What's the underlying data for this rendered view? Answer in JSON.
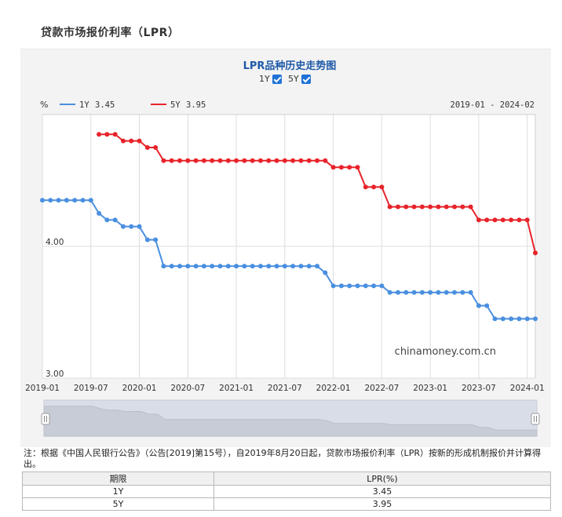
{
  "page": {
    "title": "贷款市场报价利率（LPR）",
    "note": "注：根据《中国人民银行公告》（公告[2019]第15号），自2019年8月20日起，贷款市场报价利率（LPR）按新的形成机制报价并计算得出。"
  },
  "chart_data": {
    "type": "line",
    "title": "LPR品种历史走势图",
    "toggles": [
      {
        "label": "1Y",
        "checked": true
      },
      {
        "label": "5Y",
        "checked": true
      }
    ],
    "ylabel": "%",
    "range_label": "2019-01 - 2024-02",
    "watermark": "chinamoney.com.cn",
    "ylim": [
      3.0,
      5.0
    ],
    "yticks": [
      {
        "value": 3.0,
        "label": "3.00"
      },
      {
        "value": 4.0,
        "label": "4.00"
      }
    ],
    "xlim": [
      "2019-01",
      "2024-02"
    ],
    "xticks": [
      "2019-01",
      "2019-07",
      "2020-01",
      "2020-07",
      "2021-01",
      "2021-07",
      "2022-01",
      "2022-07",
      "2023-01",
      "2023-07",
      "2024-01"
    ],
    "grid": true,
    "legend": [
      {
        "name": "1Y",
        "latest": "3.45",
        "color": "#4a8fe0"
      },
      {
        "name": "5Y",
        "latest": "3.95",
        "color": "#e8232a"
      }
    ],
    "series": [
      {
        "name": "1Y",
        "color": "#4a8fe0",
        "points": [
          [
            "2019-01",
            4.35
          ],
          [
            "2019-02",
            4.35
          ],
          [
            "2019-03",
            4.35
          ],
          [
            "2019-04",
            4.35
          ],
          [
            "2019-05",
            4.35
          ],
          [
            "2019-06",
            4.35
          ],
          [
            "2019-07",
            4.35
          ],
          [
            "2019-08",
            4.25
          ],
          [
            "2019-09",
            4.2
          ],
          [
            "2019-10",
            4.2
          ],
          [
            "2019-11",
            4.15
          ],
          [
            "2019-12",
            4.15
          ],
          [
            "2020-01",
            4.15
          ],
          [
            "2020-02",
            4.05
          ],
          [
            "2020-03",
            4.05
          ],
          [
            "2020-04",
            3.85
          ],
          [
            "2020-05",
            3.85
          ],
          [
            "2020-06",
            3.85
          ],
          [
            "2020-07",
            3.85
          ],
          [
            "2020-08",
            3.85
          ],
          [
            "2020-09",
            3.85
          ],
          [
            "2020-10",
            3.85
          ],
          [
            "2020-11",
            3.85
          ],
          [
            "2020-12",
            3.85
          ],
          [
            "2021-01",
            3.85
          ],
          [
            "2021-02",
            3.85
          ],
          [
            "2021-03",
            3.85
          ],
          [
            "2021-04",
            3.85
          ],
          [
            "2021-05",
            3.85
          ],
          [
            "2021-06",
            3.85
          ],
          [
            "2021-07",
            3.85
          ],
          [
            "2021-08",
            3.85
          ],
          [
            "2021-09",
            3.85
          ],
          [
            "2021-10",
            3.85
          ],
          [
            "2021-11",
            3.85
          ],
          [
            "2021-12",
            3.8
          ],
          [
            "2022-01",
            3.7
          ],
          [
            "2022-02",
            3.7
          ],
          [
            "2022-03",
            3.7
          ],
          [
            "2022-04",
            3.7
          ],
          [
            "2022-05",
            3.7
          ],
          [
            "2022-06",
            3.7
          ],
          [
            "2022-07",
            3.7
          ],
          [
            "2022-08",
            3.65
          ],
          [
            "2022-09",
            3.65
          ],
          [
            "2022-10",
            3.65
          ],
          [
            "2022-11",
            3.65
          ],
          [
            "2022-12",
            3.65
          ],
          [
            "2023-01",
            3.65
          ],
          [
            "2023-02",
            3.65
          ],
          [
            "2023-03",
            3.65
          ],
          [
            "2023-04",
            3.65
          ],
          [
            "2023-05",
            3.65
          ],
          [
            "2023-06",
            3.65
          ],
          [
            "2023-07",
            3.55
          ],
          [
            "2023-08",
            3.55
          ],
          [
            "2023-09",
            3.45
          ],
          [
            "2023-10",
            3.45
          ],
          [
            "2023-11",
            3.45
          ],
          [
            "2023-12",
            3.45
          ],
          [
            "2024-01",
            3.45
          ],
          [
            "2024-02",
            3.45
          ]
        ]
      },
      {
        "name": "5Y",
        "color": "#e8232a",
        "points": [
          [
            "2019-08",
            4.85
          ],
          [
            "2019-09",
            4.85
          ],
          [
            "2019-10",
            4.85
          ],
          [
            "2019-11",
            4.8
          ],
          [
            "2019-12",
            4.8
          ],
          [
            "2020-01",
            4.8
          ],
          [
            "2020-02",
            4.75
          ],
          [
            "2020-03",
            4.75
          ],
          [
            "2020-04",
            4.65
          ],
          [
            "2020-05",
            4.65
          ],
          [
            "2020-06",
            4.65
          ],
          [
            "2020-07",
            4.65
          ],
          [
            "2020-08",
            4.65
          ],
          [
            "2020-09",
            4.65
          ],
          [
            "2020-10",
            4.65
          ],
          [
            "2020-11",
            4.65
          ],
          [
            "2020-12",
            4.65
          ],
          [
            "2021-01",
            4.65
          ],
          [
            "2021-02",
            4.65
          ],
          [
            "2021-03",
            4.65
          ],
          [
            "2021-04",
            4.65
          ],
          [
            "2021-05",
            4.65
          ],
          [
            "2021-06",
            4.65
          ],
          [
            "2021-07",
            4.65
          ],
          [
            "2021-08",
            4.65
          ],
          [
            "2021-09",
            4.65
          ],
          [
            "2021-10",
            4.65
          ],
          [
            "2021-11",
            4.65
          ],
          [
            "2021-12",
            4.65
          ],
          [
            "2022-01",
            4.6
          ],
          [
            "2022-02",
            4.6
          ],
          [
            "2022-03",
            4.6
          ],
          [
            "2022-04",
            4.6
          ],
          [
            "2022-05",
            4.45
          ],
          [
            "2022-06",
            4.45
          ],
          [
            "2022-07",
            4.45
          ],
          [
            "2022-08",
            4.3
          ],
          [
            "2022-09",
            4.3
          ],
          [
            "2022-10",
            4.3
          ],
          [
            "2022-11",
            4.3
          ],
          [
            "2022-12",
            4.3
          ],
          [
            "2023-01",
            4.3
          ],
          [
            "2023-02",
            4.3
          ],
          [
            "2023-03",
            4.3
          ],
          [
            "2023-04",
            4.3
          ],
          [
            "2023-05",
            4.3
          ],
          [
            "2023-06",
            4.3
          ],
          [
            "2023-07",
            4.2
          ],
          [
            "2023-08",
            4.2
          ],
          [
            "2023-09",
            4.2
          ],
          [
            "2023-10",
            4.2
          ],
          [
            "2023-11",
            4.2
          ],
          [
            "2023-12",
            4.2
          ],
          [
            "2024-01",
            4.2
          ],
          [
            "2024-02",
            3.95
          ]
        ]
      }
    ]
  },
  "table": {
    "headers": [
      "期限",
      "LPR(%)"
    ],
    "rows": [
      [
        "1Y",
        "3.45"
      ],
      [
        "5Y",
        "3.95"
      ]
    ]
  }
}
